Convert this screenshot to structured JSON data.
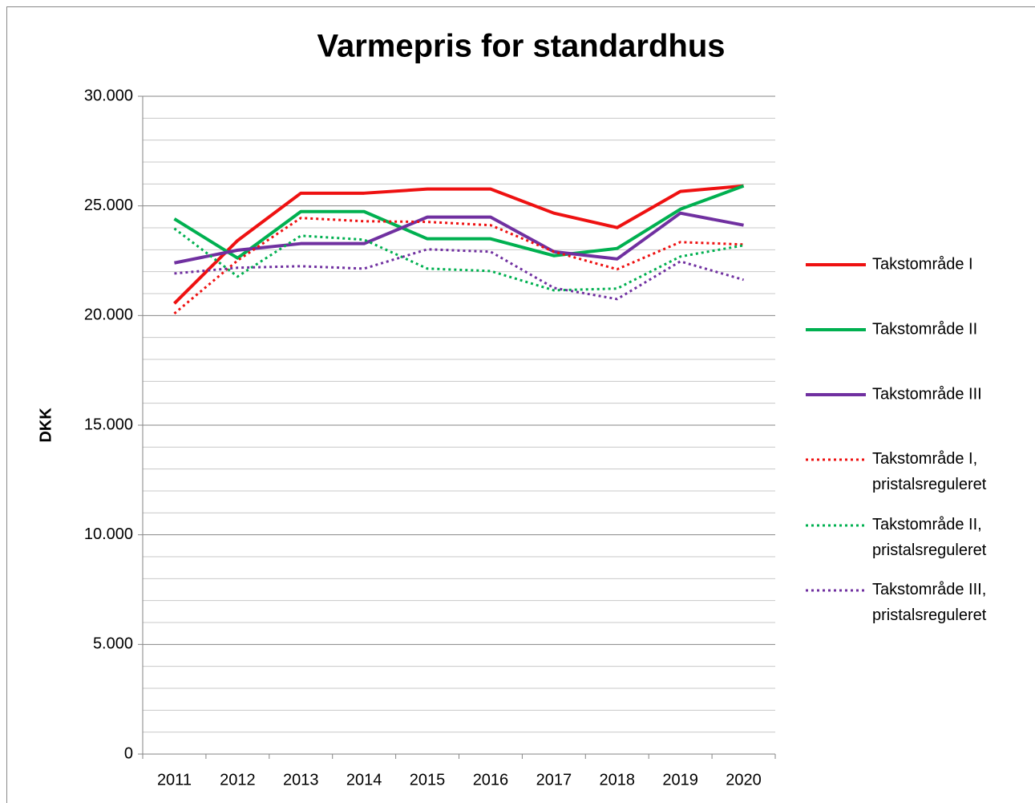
{
  "chart_data": {
    "type": "line",
    "title": "Varmepris for standardhus",
    "y_label": "DKK",
    "categories": [
      "2011",
      "2012",
      "2013",
      "2014",
      "2015",
      "2016",
      "2017",
      "2018",
      "2019",
      "2020"
    ],
    "series": [
      {
        "name": "Takstområde I",
        "color": "#ee1111",
        "dash": false,
        "values": [
          20550,
          23420,
          25580,
          25580,
          25770,
          25770,
          24670,
          24010,
          25660,
          25910
        ]
      },
      {
        "name": "Takstområde II",
        "color": "#00b050",
        "dash": false,
        "values": [
          24410,
          22620,
          24740,
          24740,
          23500,
          23500,
          22730,
          23060,
          24850,
          25910
        ]
      },
      {
        "name": "Takstområde III",
        "color": "#7030a0",
        "dash": false,
        "values": [
          22400,
          22980,
          23280,
          23280,
          24490,
          24490,
          22910,
          22580,
          24670,
          24120
        ]
      },
      {
        "name": "Takstområde I, pristalsreguleret",
        "color": "#ee1111",
        "dash": true,
        "values": [
          20090,
          22510,
          24450,
          24300,
          24270,
          24120,
          22910,
          22110,
          23350,
          23240
        ]
      },
      {
        "name": "Takstområde II, pristalsreguleret",
        "color": "#00b050",
        "dash": true,
        "values": [
          23970,
          21780,
          23640,
          23460,
          22140,
          22030,
          21150,
          21230,
          22690,
          23200
        ]
      },
      {
        "name": "Takstområde III, pristalsreguleret",
        "color": "#7030a0",
        "dash": true,
        "values": [
          21920,
          22180,
          22250,
          22140,
          23020,
          22910,
          21260,
          20750,
          22470,
          21630
        ]
      }
    ],
    "ylim": [
      0,
      30000
    ],
    "yticks": [
      0,
      {
        "value": 5000,
        "label": "5.000"
      },
      {
        "value": 10000,
        "label": "10.000"
      },
      {
        "value": 15000,
        "label": "15.000"
      },
      {
        "value": 20000,
        "label": "20.000"
      },
      {
        "value": 25000,
        "label": "25.000"
      },
      {
        "value": 30000,
        "label": "30.000"
      }
    ],
    "minor_yticks": [
      1000,
      2000,
      3000,
      4000,
      6000,
      7000,
      8000,
      9000,
      11000,
      12000,
      13000,
      14000,
      16000,
      17000,
      18000,
      19000,
      21000,
      22000,
      23000,
      24000,
      26000,
      27000,
      28000,
      29000
    ],
    "grid": true,
    "legend": "right"
  }
}
